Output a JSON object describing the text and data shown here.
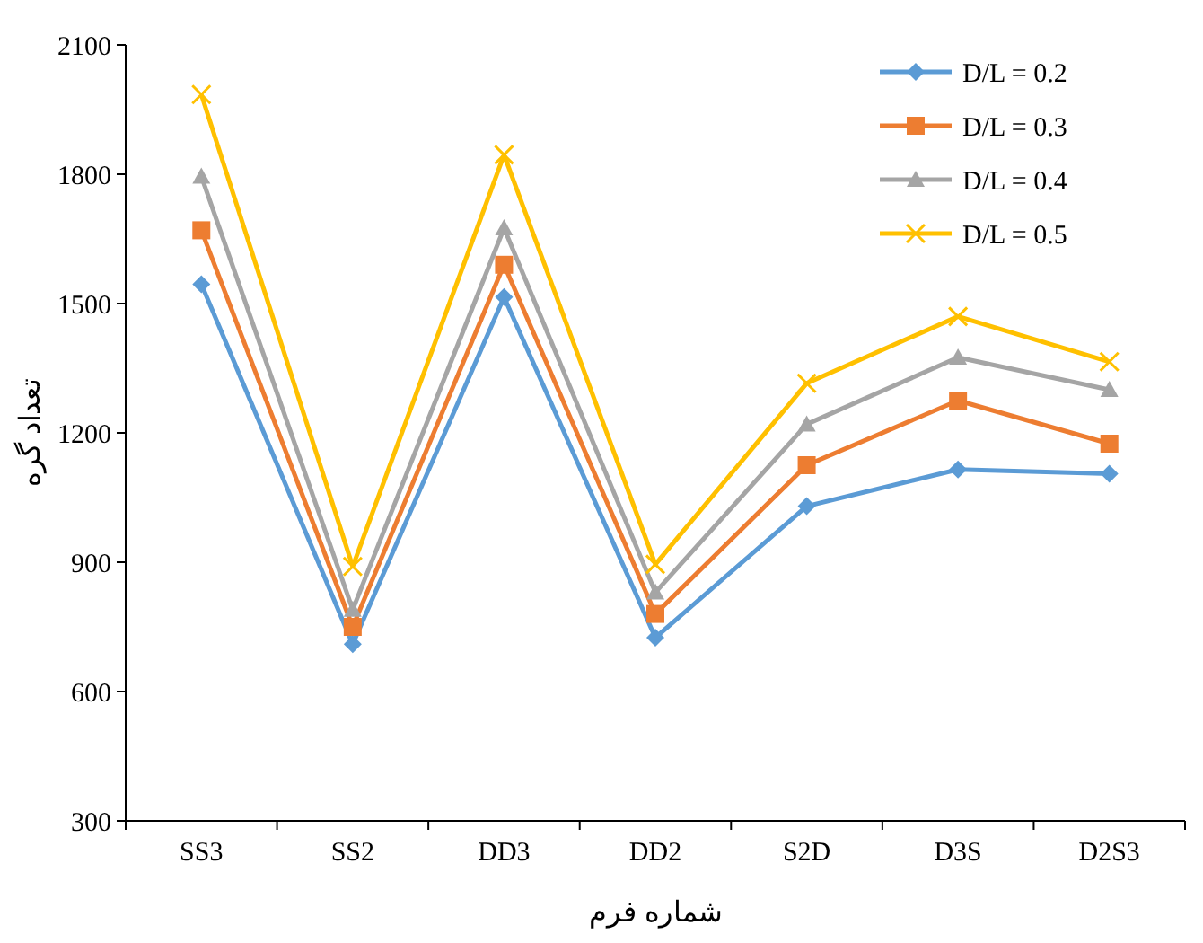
{
  "chart_data": {
    "type": "line",
    "xlabel": "شماره فرم",
    "ylabel": "تعداد گره",
    "categories": [
      "SS3",
      "SS2",
      "DD3",
      "DD2",
      "S2D",
      "D3S",
      "D2S3"
    ],
    "ylim": [
      300,
      2100
    ],
    "yticks": [
      300,
      600,
      900,
      1200,
      1500,
      1800,
      2100
    ],
    "grid": false,
    "legend": "top right",
    "line_style": "solid",
    "series": [
      {
        "name": "D/L = 0.2",
        "color": "#5b9bd5",
        "marker": "diamond",
        "values": [
          1545,
          710,
          1515,
          725,
          1030,
          1115,
          1105
        ]
      },
      {
        "name": "D/L = 0.3",
        "color": "#ed7d31",
        "marker": "square",
        "values": [
          1670,
          750,
          1590,
          780,
          1125,
          1275,
          1175
        ]
      },
      {
        "name": "D/L = 0.4",
        "color": "#a5a5a5",
        "marker": "triangle",
        "values": [
          1795,
          790,
          1675,
          830,
          1220,
          1375,
          1300
        ]
      },
      {
        "name": "D/L = 0.5",
        "color": "#ffc000",
        "marker": "cross",
        "values": [
          1985,
          890,
          1845,
          895,
          1315,
          1470,
          1365
        ]
      }
    ]
  }
}
